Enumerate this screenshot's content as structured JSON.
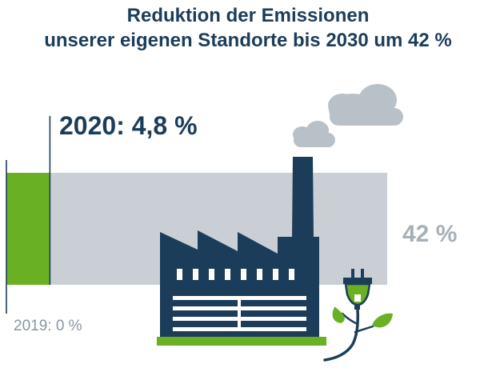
{
  "title": {
    "line1": "Reduktion der Emissionen",
    "line2": "unserer eigenen Standorte bis 2030 um 42 %"
  },
  "chart_data": {
    "type": "bar",
    "orientation": "horizontal",
    "title": "Reduktion der Emissionen unserer eigenen Standorte bis 2030 um 42 %",
    "xlim": [
      0,
      42
    ],
    "grid": false,
    "legend": "none",
    "annotations": {
      "baseline": "2019: 0 %",
      "current": "2020: 4,8 %",
      "target": "42 %"
    },
    "series": [
      {
        "values": [
          4.8
        ],
        "color": "#6ab023"
      },
      {
        "values": [
          42
        ],
        "color": "#c9cfd4"
      }
    ]
  },
  "colors": {
    "navy": "#1c3d5a",
    "green": "#6ab023",
    "grey_bar": "#c9cfd4",
    "smoke": "#b8c1c8"
  },
  "icons": [
    "factory-icon",
    "smoke-cloud-icon",
    "power-plug-icon",
    "leaf-sprout-icon"
  ]
}
